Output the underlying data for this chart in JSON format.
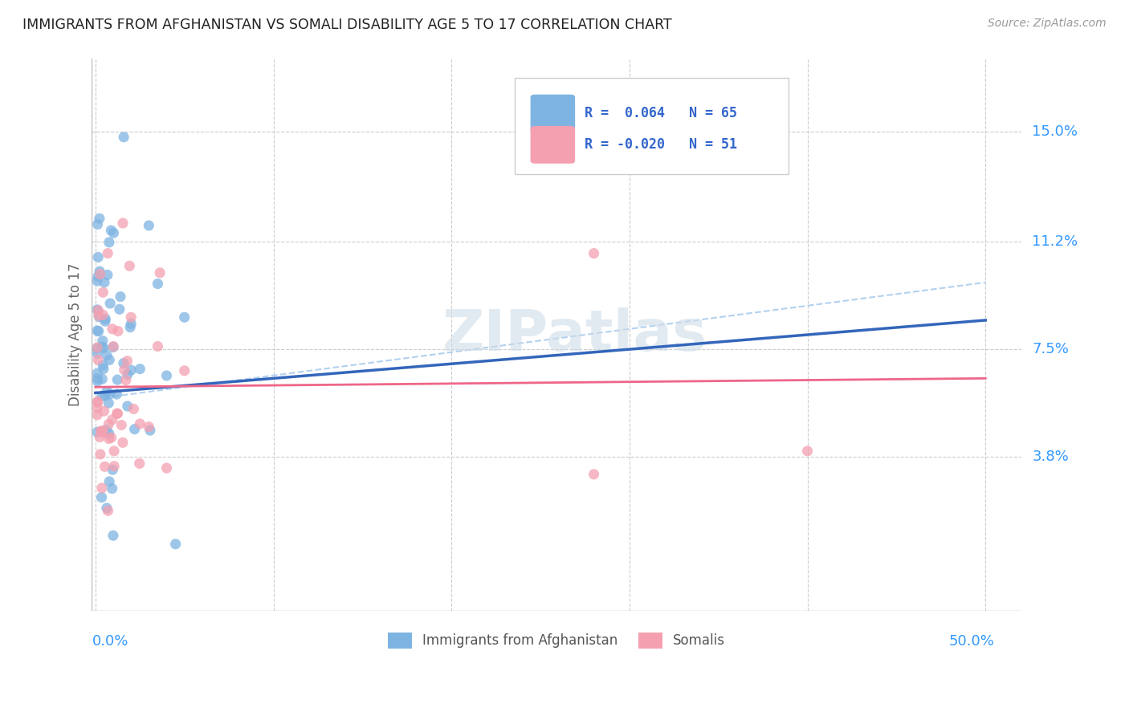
{
  "title": "IMMIGRANTS FROM AFGHANISTAN VS SOMALI DISABILITY AGE 5 TO 17 CORRELATION CHART",
  "source": "Source: ZipAtlas.com",
  "ylabel": "Disability Age 5 to 17",
  "ytick_values": [
    0.038,
    0.075,
    0.112,
    0.15
  ],
  "ytick_labels": [
    "3.8%",
    "7.5%",
    "11.2%",
    "15.0%"
  ],
  "xlim": [
    -0.002,
    0.52
  ],
  "ylim": [
    -0.015,
    0.175
  ],
  "color_afghanistan": "#7EB4E2",
  "color_somali": "#F4A0B0",
  "color_trend_afghanistan": "#3366BB",
  "color_trend_somali": "#EE6688",
  "color_trend_dashed": "#AACCEE",
  "watermark": "ZIPatlas",
  "afg_trend_x0": 0.0,
  "afg_trend_y0": 0.06,
  "afg_trend_x1": 0.3,
  "afg_trend_y1": 0.075,
  "som_trend_x0": 0.0,
  "som_trend_y0": 0.062,
  "som_trend_x1": 0.5,
  "som_trend_y1": 0.065,
  "dash_trend_x0": 0.0,
  "dash_trend_y0": 0.058,
  "dash_trend_x1": 0.5,
  "dash_trend_y1": 0.098,
  "legend_text1": "R =  0.064   N = 65",
  "legend_text2": "R = -0.020   N = 51",
  "legend_color1_r": " 0.064",
  "legend_color1_n": "65",
  "legend_color2_r": "-0.020",
  "legend_color2_n": "51"
}
